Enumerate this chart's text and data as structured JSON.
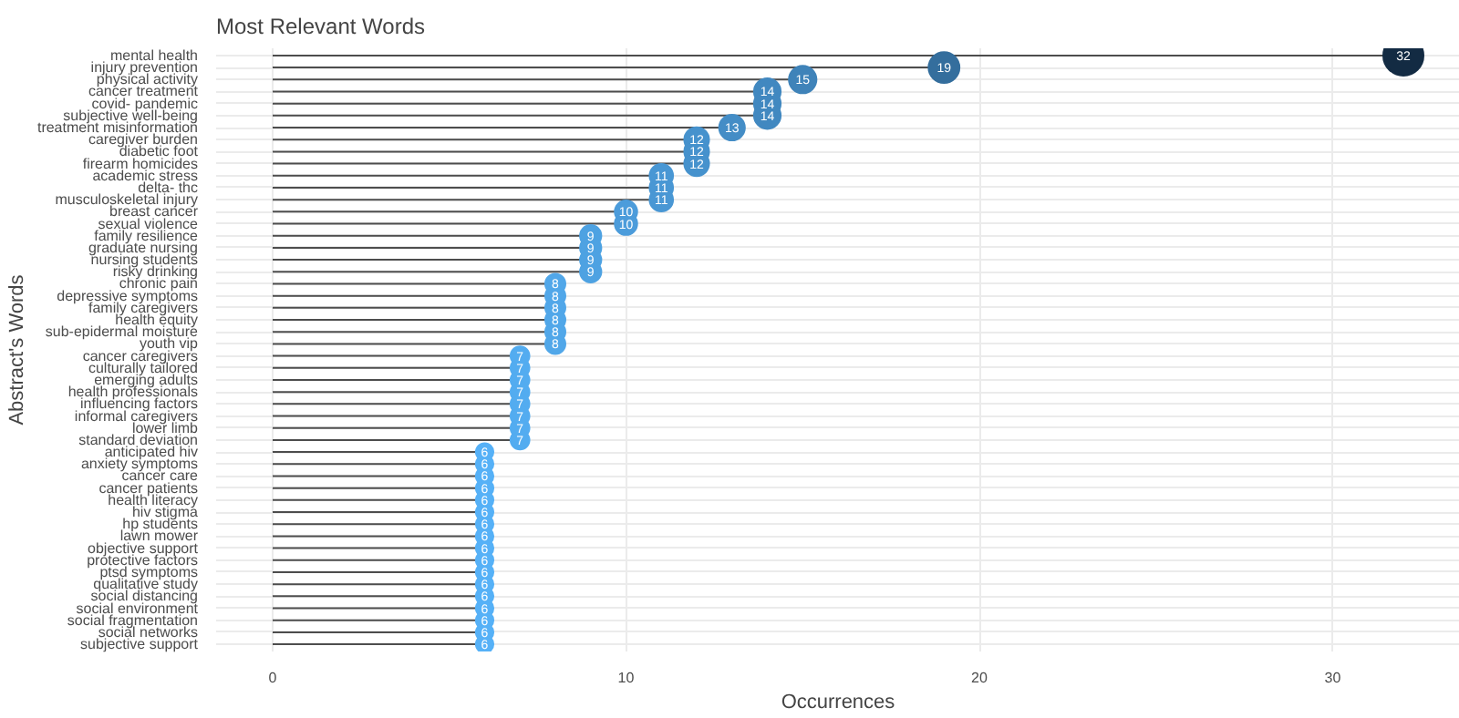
{
  "chart_data": {
    "type": "lollipop",
    "title": "Most Relevant Words",
    "xlabel": "Occurrences",
    "ylabel": "Abstract's Words",
    "categories": [
      "mental health",
      "injury prevention",
      "physical activity",
      "cancer treatment",
      "covid- pandemic",
      "subjective well-being",
      "treatment misinformation",
      "caregiver burden",
      "diabetic foot",
      "firearm homicides",
      "academic stress",
      "delta- thc",
      "musculoskeletal injury",
      "breast cancer",
      "sexual violence",
      "family resilience",
      "graduate nursing",
      "nursing students",
      "risky drinking",
      "chronic pain",
      "depressive symptoms",
      "family caregivers",
      "health equity",
      "sub-epidermal moisture",
      "youth vip",
      "cancer caregivers",
      "culturally tailored",
      "emerging adults",
      "health professionals",
      "influencing factors",
      "informal caregivers",
      "lower limb",
      "standard deviation",
      "anticipated hiv",
      "anxiety symptoms",
      "cancer care",
      "cancer patients",
      "health literacy",
      "hiv stigma",
      "hp students",
      "lawn mower",
      "objective support",
      "protective factors",
      "ptsd symptoms",
      "qualitative study",
      "social distancing",
      "social environment",
      "social fragmentation",
      "social networks",
      "subjective support"
    ],
    "values": [
      32,
      19,
      15,
      14,
      14,
      14,
      13,
      12,
      12,
      12,
      11,
      11,
      11,
      10,
      10,
      9,
      9,
      9,
      9,
      8,
      8,
      8,
      8,
      8,
      8,
      7,
      7,
      7,
      7,
      7,
      7,
      7,
      7,
      6,
      6,
      6,
      6,
      6,
      6,
      6,
      6,
      6,
      6,
      6,
      6,
      6,
      6,
      6,
      6,
      6
    ],
    "colors": [
      "#132b43",
      "#346e9d",
      "#3f83b9",
      "#4188c0",
      "#4188c0",
      "#4188c0",
      "#448dc6",
      "#4692cd",
      "#4692cd",
      "#4692cd",
      "#4997d4",
      "#4997d4",
      "#4997d4",
      "#4c9cdb",
      "#4c9cdb",
      "#4ea2e2",
      "#4ea2e2",
      "#4ea2e2",
      "#4ea2e2",
      "#51a7e9",
      "#51a7e9",
      "#51a7e9",
      "#51a7e9",
      "#51a7e9",
      "#51a7e9",
      "#53acf0",
      "#53acf0",
      "#53acf0",
      "#53acf0",
      "#53acf0",
      "#53acf0",
      "#53acf0",
      "#53acf0",
      "#56b1f7",
      "#56b1f7",
      "#56b1f7",
      "#56b1f7",
      "#56b1f7",
      "#56b1f7",
      "#56b1f7",
      "#56b1f7",
      "#56b1f7",
      "#56b1f7",
      "#56b1f7",
      "#56b1f7",
      "#56b1f7",
      "#56b1f7",
      "#56b1f7",
      "#56b1f7",
      "#56b1f7"
    ],
    "sizes": [
      1,
      0.59,
      0.47,
      0.44,
      0.44,
      0.44,
      0.41,
      0.38,
      0.38,
      0.38,
      0.34,
      0.34,
      0.34,
      0.31,
      0.31,
      0.28,
      0.28,
      0.28,
      0.28,
      0.25,
      0.25,
      0.25,
      0.25,
      0.25,
      0.25,
      0.22,
      0.22,
      0.22,
      0.22,
      0.22,
      0.22,
      0.22,
      0.22,
      0.19,
      0.19,
      0.19,
      0.19,
      0.19,
      0.19,
      0.19,
      0.19,
      0.19,
      0.19,
      0.19,
      0.19,
      0.19,
      0.19,
      0.19,
      0.19,
      0.19
    ],
    "orientation": "horizontal",
    "xlim": [
      -1.6,
      33.6
    ],
    "xticks": [
      0,
      10,
      20,
      30
    ],
    "grid": true,
    "data_labels": true
  }
}
